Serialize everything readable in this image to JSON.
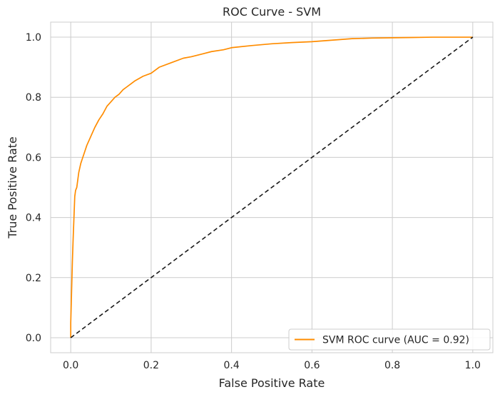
{
  "chart_data": {
    "type": "line",
    "title": "ROC Curve - SVM",
    "xlabel": "False Positive Rate",
    "ylabel": "True Positive Rate",
    "xlim": [
      -0.05,
      1.05
    ],
    "ylim": [
      -0.05,
      1.05
    ],
    "xticks": [
      0.0,
      0.2,
      0.4,
      0.6,
      0.8,
      1.0
    ],
    "yticks": [
      0.0,
      0.2,
      0.4,
      0.6,
      0.8,
      1.0
    ],
    "xtick_labels": [
      "0.0",
      "0.2",
      "0.4",
      "0.6",
      "0.8",
      "1.0"
    ],
    "ytick_labels": [
      "0.0",
      "0.2",
      "0.4",
      "0.6",
      "0.8",
      "1.0"
    ],
    "grid": true,
    "legend_position": "lower-right",
    "series": [
      {
        "name": "SVM ROC curve (AUC = 0.92)",
        "color": "#ff8c00",
        "style": "solid",
        "x": [
          0.0,
          0.0,
          0.002,
          0.004,
          0.006,
          0.008,
          0.01,
          0.012,
          0.015,
          0.02,
          0.025,
          0.03,
          0.035,
          0.04,
          0.05,
          0.06,
          0.07,
          0.08,
          0.09,
          0.1,
          0.11,
          0.12,
          0.13,
          0.14,
          0.15,
          0.16,
          0.18,
          0.2,
          0.22,
          0.25,
          0.28,
          0.3,
          0.33,
          0.35,
          0.38,
          0.4,
          0.45,
          0.5,
          0.55,
          0.6,
          0.65,
          0.7,
          0.75,
          0.8,
          0.85,
          0.9,
          0.95,
          1.0
        ],
        "y": [
          0.0,
          0.05,
          0.15,
          0.25,
          0.33,
          0.4,
          0.47,
          0.49,
          0.5,
          0.55,
          0.58,
          0.6,
          0.62,
          0.64,
          0.67,
          0.7,
          0.725,
          0.745,
          0.77,
          0.785,
          0.8,
          0.81,
          0.825,
          0.835,
          0.845,
          0.855,
          0.87,
          0.88,
          0.9,
          0.915,
          0.93,
          0.935,
          0.945,
          0.952,
          0.958,
          0.965,
          0.972,
          0.978,
          0.982,
          0.985,
          0.99,
          0.995,
          0.997,
          0.998,
          0.999,
          1.0,
          1.0,
          1.0
        ]
      },
      {
        "name": "",
        "color": "#1a1a1a",
        "style": "dashed",
        "x": [
          0.0,
          1.0
        ],
        "y": [
          0.0,
          1.0
        ]
      }
    ]
  }
}
